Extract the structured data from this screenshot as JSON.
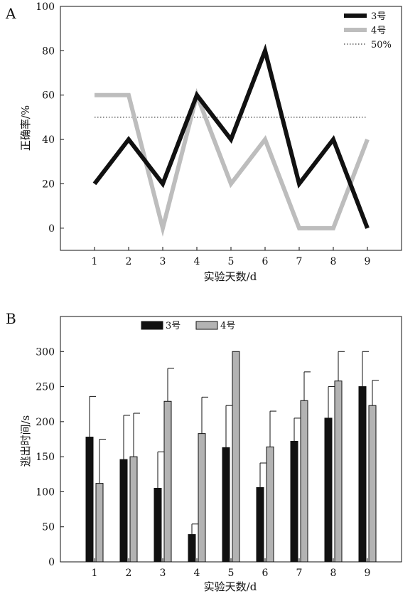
{
  "chart_data": [
    {
      "panel": "A",
      "type": "line",
      "xlabel": "实验天数/d",
      "ylabel": "正确率/%",
      "x": [
        1,
        2,
        3,
        4,
        5,
        6,
        7,
        8,
        9
      ],
      "xlim": [
        0,
        10
      ],
      "ylim": [
        -10,
        100
      ],
      "yticks": [
        0,
        20,
        40,
        60,
        80,
        100
      ],
      "series": [
        {
          "name": "3号",
          "color": "#111111",
          "values": [
            20,
            40,
            20,
            60,
            40,
            80,
            20,
            40,
            0
          ]
        },
        {
          "name": "4号",
          "color": "#bdbdbd",
          "values": [
            60,
            60,
            0,
            60,
            20,
            40,
            0,
            0,
            40
          ]
        }
      ],
      "reference_line": {
        "name": "50%",
        "value": 50,
        "style": "dotted"
      },
      "legend": "top-right",
      "grid": false
    },
    {
      "panel": "B",
      "type": "bar",
      "xlabel": "实验天数/d",
      "ylabel": "逃出时间/s",
      "categories": [
        "1",
        "2",
        "3",
        "4",
        "5",
        "6",
        "7",
        "8",
        "9"
      ],
      "ylim": [
        0,
        350
      ],
      "yticks": [
        0,
        50,
        100,
        150,
        200,
        250,
        300
      ],
      "series": [
        {
          "name": "3号",
          "color": "#111111",
          "values": [
            178,
            146,
            105,
            39,
            163,
            106,
            172,
            205,
            250
          ],
          "error": [
            58,
            63,
            52,
            15,
            60,
            35,
            33,
            45,
            50
          ]
        },
        {
          "name": "4号",
          "color": "#b3b3b3",
          "values": [
            112,
            150,
            229,
            183,
            300,
            164,
            230,
            258,
            223
          ],
          "error": [
            63,
            62,
            47,
            52,
            0,
            51,
            41,
            42,
            36
          ]
        }
      ],
      "legend": "top-left",
      "grid": false
    }
  ]
}
